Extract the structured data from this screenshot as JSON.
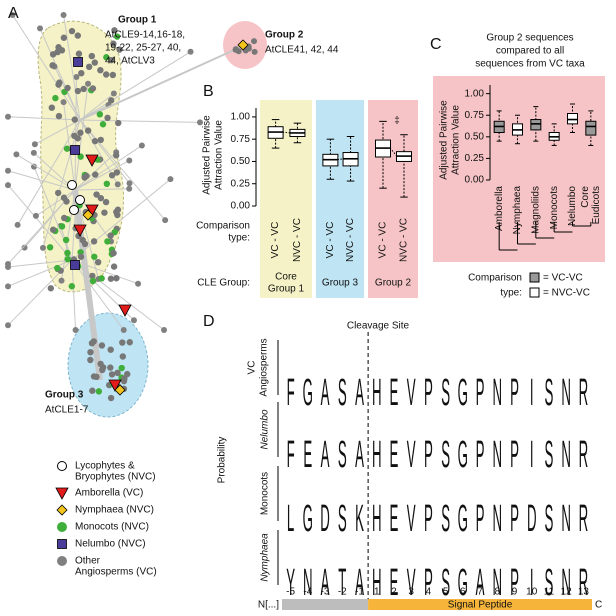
{
  "figure_letters": [
    "A",
    "B",
    "C",
    "D"
  ],
  "panel_a": {
    "groups": [
      {
        "title": "Group 1",
        "lines": [
          "AtCLE9-14,16-18,",
          "19-22, 25-27, 40,",
          "44, AtCLV3"
        ]
      },
      {
        "title": "Group 2",
        "lines": [
          "AtCLE41, 42, 44"
        ]
      },
      {
        "title": "Group 3",
        "lines": [
          "AtCLE1-7"
        ]
      }
    ],
    "legend": [
      {
        "lines": [
          "Lycophytes &",
          "Bryophytes (NVC)"
        ],
        "shape": "circle",
        "color": "#ffffff"
      },
      {
        "lines": [
          "Amborella (VC)"
        ],
        "shape": "triangle",
        "color": "#e21b1b"
      },
      {
        "lines": [
          "Nymphaea (NVC)"
        ],
        "shape": "diamond",
        "color": "#f2c41b"
      },
      {
        "lines": [
          "Monocots (NVC)"
        ],
        "shape": "circle",
        "color": "#3fae3a"
      },
      {
        "lines": [
          "Nelumbo (NVC)"
        ],
        "shape": "square",
        "color": "#4a3d9a"
      },
      {
        "lines": [
          "Other",
          "Angiosperms (VC)"
        ],
        "shape": "circle",
        "color": "#808080"
      }
    ]
  },
  "chart_data": [
    {
      "type": "box",
      "ylabel": [
        "Adjusted Pairwise",
        "Attraction Value"
      ],
      "ylim": [
        0,
        1.1
      ],
      "yticks": [
        {
          "value": 0,
          "label": "0.00"
        },
        {
          "value": 0.25,
          "label": "0.25"
        },
        {
          "value": 0.5,
          "label": "0.50"
        },
        {
          "value": 0.75,
          "label": "0.75"
        },
        {
          "value": 1,
          "label": "1.00"
        }
      ],
      "comparison_label": [
        "Comparison",
        "type:"
      ],
      "group_label": "CLE Group:",
      "annotation": "‡",
      "groups": [
        {
          "name": [
            "Core",
            "Group 1"
          ],
          "color": "#f4f2c6",
          "boxes": [
            {
              "category": "VC - VC",
              "low": 0.65,
              "q1": 0.76,
              "median": 0.83,
              "q3": 0.89,
              "high": 0.97
            },
            {
              "category": "NVC - VC",
              "low": 0.71,
              "q1": 0.78,
              "median": 0.82,
              "q3": 0.86,
              "high": 0.93
            }
          ]
        },
        {
          "name": [
            "Group 3"
          ],
          "color": "#bfe4f3",
          "boxes": [
            {
              "category": "VC - VC",
              "low": 0.3,
              "q1": 0.45,
              "median": 0.52,
              "q3": 0.58,
              "high": 0.75
            },
            {
              "category": "NVC - VC",
              "low": 0.28,
              "q1": 0.45,
              "median": 0.53,
              "q3": 0.6,
              "high": 0.78
            }
          ]
        },
        {
          "name": [
            "Group 2"
          ],
          "color": "#f6c4c6",
          "boxes": [
            {
              "category": "VC - VC",
              "low": 0.2,
              "q1": 0.55,
              "median": 0.65,
              "q3": 0.74,
              "high": 0.95
            },
            {
              "category": "NVC - VC",
              "low": 0.1,
              "q1": 0.5,
              "median": 0.56,
              "q3": 0.61,
              "high": 0.8
            }
          ]
        }
      ]
    },
    {
      "type": "box",
      "title": [
        "Group 2 sequences",
        "compared to all",
        "sequences from VC taxa"
      ],
      "ylabel": [
        "Adjusted Pairwise",
        "Attraction Value"
      ],
      "ylim": [
        0,
        1.1
      ],
      "yticks": [
        {
          "value": 0,
          "label": "0.00"
        },
        {
          "value": 0.25,
          "label": "0.25"
        },
        {
          "value": 0.5,
          "label": "0.50"
        },
        {
          "value": 0.75,
          "label": "0.75"
        },
        {
          "value": 1,
          "label": "1.00"
        }
      ],
      "background": "#f6c4c6",
      "categories": [
        [
          "Amborella"
        ],
        [
          "Nymphaea"
        ],
        [
          "Magnoliids"
        ],
        [
          "Monocots"
        ],
        [
          "Nelumbo"
        ],
        [
          "Core",
          "Eudicots"
        ]
      ],
      "legend_title": [
        "Comparison",
        "type:"
      ],
      "series": [
        {
          "name": "= VC-VC",
          "color": "#999999"
        },
        {
          "name": "= NVC-VC",
          "color": "#ffffff"
        }
      ],
      "boxes": [
        {
          "series": 0,
          "low": 0.45,
          "q1": 0.55,
          "median": 0.62,
          "q3": 0.68,
          "high": 0.8
        },
        {
          "series": 1,
          "low": 0.42,
          "q1": 0.52,
          "median": 0.58,
          "q3": 0.65,
          "high": 0.75
        },
        {
          "series": 0,
          "low": 0.45,
          "q1": 0.58,
          "median": 0.65,
          "q3": 0.7,
          "high": 0.85
        },
        {
          "series": 1,
          "low": 0.4,
          "q1": 0.46,
          "median": 0.5,
          "q3": 0.55,
          "high": 0.65
        },
        {
          "series": 1,
          "low": 0.55,
          "q1": 0.65,
          "median": 0.7,
          "q3": 0.77,
          "high": 0.88
        },
        {
          "series": 0,
          "low": 0.4,
          "q1": 0.52,
          "median": 0.62,
          "q3": 0.68,
          "high": 0.8
        }
      ]
    }
  ],
  "panel_d": {
    "title": "Cleavage Site",
    "ylabel": "Probability",
    "rows": [
      {
        "label": [
          "VC",
          "Angiosperms"
        ],
        "letters": [
          "F",
          "G",
          "A",
          "S",
          "A",
          "H",
          "E",
          "V",
          "P",
          "S",
          "G",
          "P",
          "N",
          "P",
          "I",
          "S",
          "N",
          "R"
        ]
      },
      {
        "label": [
          "Nelumbo"
        ],
        "letters": [
          "F",
          "E",
          "A",
          "S",
          "A",
          "H",
          "E",
          "V",
          "P",
          "S",
          "G",
          "P",
          "N",
          "P",
          "I",
          "S",
          "N",
          "R"
        ]
      },
      {
        "label": [
          "Monocots"
        ],
        "letters": [
          "L",
          "G",
          "D",
          "S",
          "K",
          "H",
          "E",
          "V",
          "P",
          "S",
          "G",
          "P",
          "N",
          "P",
          "D",
          "S",
          "N",
          "R"
        ]
      },
      {
        "label": [
          "Nymphaea"
        ],
        "letters": [
          "Y",
          "N",
          "A",
          "T",
          "A",
          "H",
          "E",
          "V",
          "P",
          "S",
          "G",
          "A",
          "N",
          "P",
          "I",
          "S",
          "N",
          "R"
        ]
      }
    ],
    "positions": [
      "-5",
      "-4",
      "-3",
      "-2",
      "-1",
      "1",
      "2",
      "3",
      "4",
      "5",
      "6",
      "7",
      "8",
      "9",
      "10",
      "11",
      "12",
      "13"
    ],
    "n_label": "N[...]",
    "c_label": "C",
    "signal_label": "Signal Peptide",
    "letter_colors": {
      "H": "#2f5eae",
      "K": "#2f5eae",
      "R": "#2f5eae",
      "D": "#e0262b",
      "E": "#e0262b",
      "S": "#2e9e46",
      "G": "#2e9e46",
      "T": "#2e9e46",
      "Y": "#2e9e46",
      "N": "#7a2b8f",
      "Q": "#7a2b8f",
      "A": "#111111",
      "V": "#111111",
      "L": "#111111",
      "I": "#111111",
      "P": "#111111",
      "F": "#111111",
      "M": "#111111",
      "W": "#111111"
    }
  }
}
